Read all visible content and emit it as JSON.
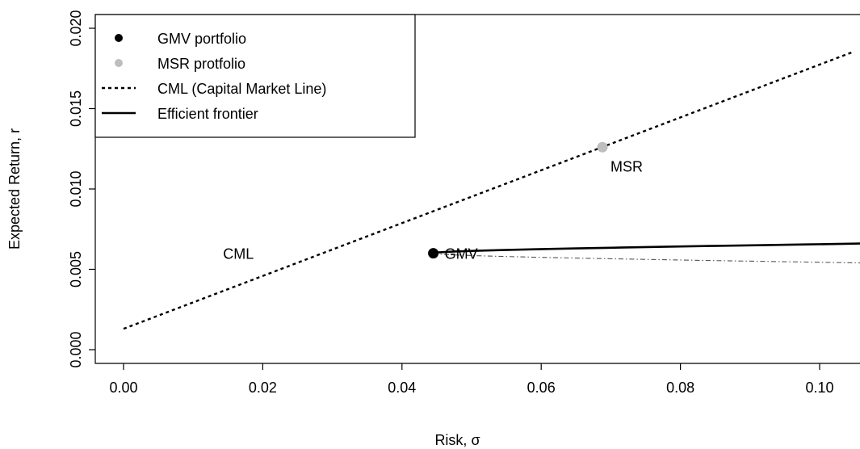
{
  "chart_data": {
    "type": "line",
    "xlabel": "Risk, σ",
    "ylabel": "Expected Return,  r",
    "xlim": [
      0.0,
      0.105
    ],
    "ylim": [
      -0.0008,
      0.0208
    ],
    "x_ticks": [
      0.0,
      0.02,
      0.04,
      0.06,
      0.08,
      0.1
    ],
    "x_tick_labels": [
      "0.00",
      "0.02",
      "0.04",
      "0.06",
      "0.08",
      "0.10"
    ],
    "y_ticks": [
      0.0,
      0.005,
      0.01,
      0.015,
      0.02
    ],
    "y_tick_labels": [
      "0.000",
      "0.005",
      "0.010",
      "0.015",
      "0.020"
    ],
    "grid": false,
    "legend_position": "top-left",
    "legend": [
      {
        "label": "GMV portfolio",
        "symbol": "point",
        "color": "#000000"
      },
      {
        "label": "MSR protfolio",
        "symbol": "point",
        "color": "#bebebe"
      },
      {
        "label": "CML (Capital  Market Line)",
        "symbol": "dashed-line",
        "color": "#000000"
      },
      {
        "label": "Efficient frontier",
        "symbol": "solid-line",
        "color": "#000000"
      }
    ],
    "points": {
      "gmv": {
        "x": 0.0445,
        "y": 0.006,
        "label": "GMV",
        "color": "#000000"
      },
      "msr": {
        "x": 0.0688,
        "y": 0.0126,
        "label": "MSR",
        "color": "#bebebe"
      }
    },
    "cml": {
      "intercept": 0.0013,
      "slope": 0.1644,
      "x_start": 0.0
    },
    "frontier": {
      "sigma_min": 0.0445,
      "r_gmv": 0.006,
      "a": 0.0063
    },
    "annotations": [
      {
        "text": "CML",
        "x": 0.0165,
        "y": 0.006
      }
    ]
  }
}
